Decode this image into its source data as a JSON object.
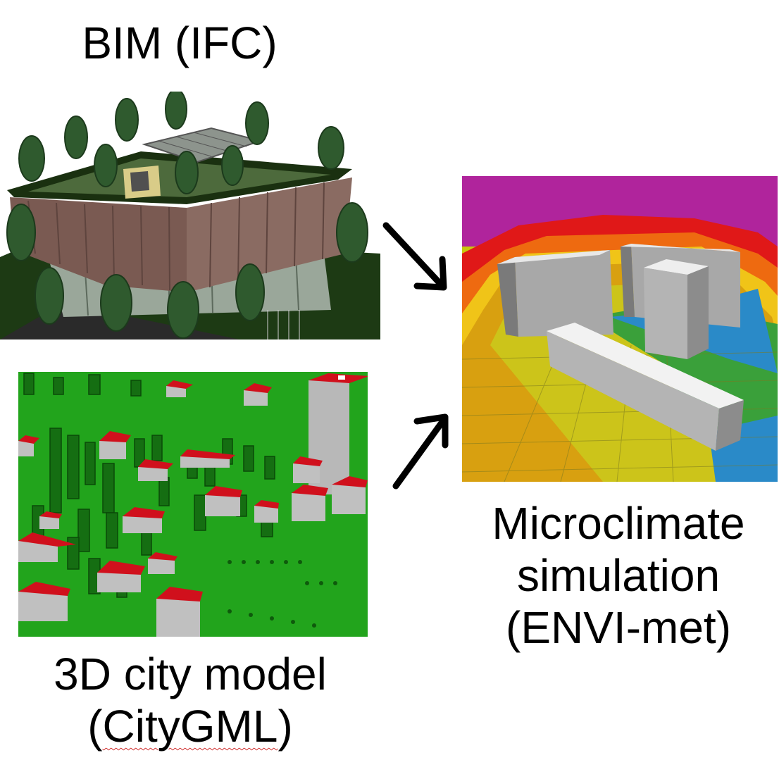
{
  "labels": {
    "bim": "BIM (IFC)",
    "city_line1": "3D city model",
    "city_line2_prefix": "(",
    "city_line2_word": "CityGML",
    "city_line2_suffix": ")",
    "sim_line1": "Microclimate",
    "sim_line2": "simulation",
    "sim_line3": "(ENVI-met)"
  },
  "icons": {
    "arrow_bim": "arrow-down-right-icon",
    "arrow_city": "arrow-up-right-icon"
  },
  "colors": {
    "arrow": "#000000",
    "city_ground": "#22a41c",
    "roof": "#d0101c",
    "sim_top": "#b0249c"
  }
}
